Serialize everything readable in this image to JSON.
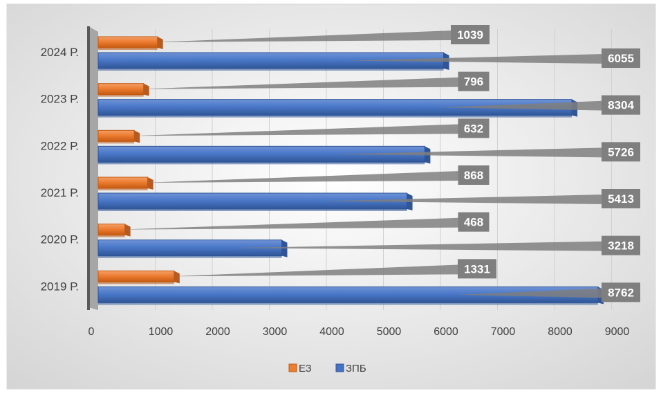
{
  "chart_data": {
    "type": "bar",
    "orientation": "horizontal",
    "categories": [
      "2019 Р.",
      "2020 Р.",
      "2021 Р.",
      "2022 Р.",
      "2023 Р.",
      "2024 Р."
    ],
    "series": [
      {
        "name": "ЕЗ",
        "color": "#ED7D31",
        "values": [
          1331,
          468,
          868,
          632,
          796,
          1039
        ]
      },
      {
        "name": "ЗПБ",
        "color": "#4472C4",
        "values": [
          8762,
          3218,
          5413,
          5726,
          8304,
          6055
        ]
      }
    ],
    "xticks": [
      "0",
      "1000",
      "2000",
      "3000",
      "4000",
      "5000",
      "6000",
      "7000",
      "8000",
      "9000"
    ],
    "xlim": [
      0,
      9000
    ],
    "grid": true,
    "legend_position": "bottom",
    "data_label_color": "#7F7F7F"
  }
}
